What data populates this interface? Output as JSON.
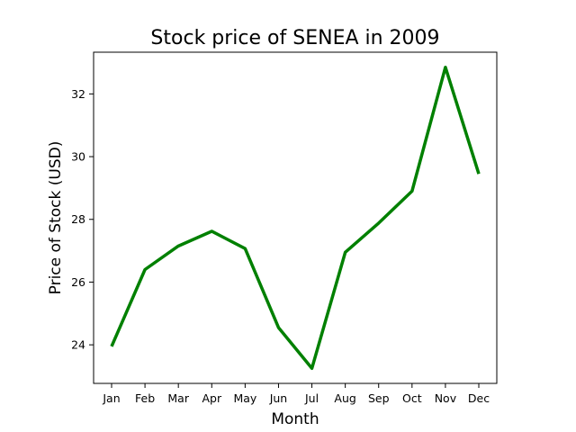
{
  "chart_data": {
    "type": "line",
    "title": "Stock price of SENEA in 2009",
    "xlabel": "Month",
    "ylabel": "Price of Stock (USD)",
    "categories": [
      "Jan",
      "Feb",
      "Mar",
      "Apr",
      "May",
      "Jun",
      "Jul",
      "Aug",
      "Sep",
      "Oct",
      "Nov",
      "Dec"
    ],
    "series": [
      {
        "values": [
          23.95,
          26.4,
          27.15,
          27.62,
          27.07,
          24.55,
          23.25,
          26.95,
          27.88,
          28.9,
          32.85,
          29.45
        ],
        "color": "#008000"
      }
    ],
    "yticks": [
      24,
      26,
      28,
      30,
      32
    ],
    "ylim": [
      22.77,
      33.33
    ],
    "grid": false,
    "legend": "none"
  }
}
